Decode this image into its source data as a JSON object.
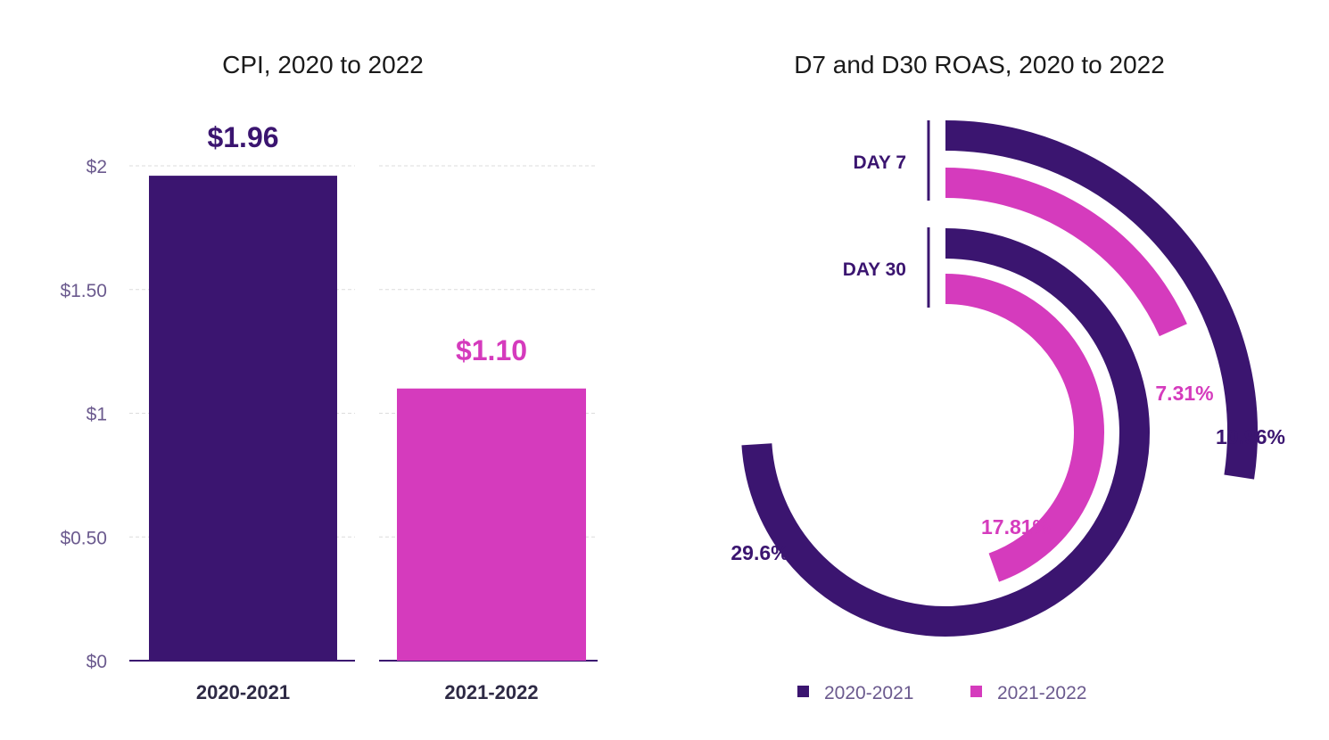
{
  "colors": {
    "series_2020": "#3b1570",
    "series_2021": "#d53bbd",
    "grid": "#dcdcdc",
    "axis": "#3b1570"
  },
  "chart_data": [
    {
      "type": "bar",
      "title": "CPI, 2020 to 2022",
      "categories": [
        "2020-2021",
        "2021-2022"
      ],
      "values": [
        1.96,
        1.1
      ],
      "value_labels": [
        "$1.96",
        "$1.10"
      ],
      "ylim": [
        0,
        2
      ],
      "yticks": [
        0,
        0.5,
        1,
        1.5,
        2
      ],
      "ytick_labels": [
        "$0",
        "$0.50",
        "$1",
        "$1.50",
        "$2"
      ],
      "grid": true,
      "legend": "none"
    },
    {
      "type": "radial-bar",
      "title": "D7 and D30 ROAS, 2020 to 2022",
      "groups": [
        "DAY 7",
        "DAY 30"
      ],
      "series": [
        {
          "name": "2020-2021",
          "values": [
            10.96,
            29.6
          ],
          "labels": [
            "10.96%",
            "29.6%"
          ]
        },
        {
          "name": "2021-2022",
          "values": [
            7.31,
            17.81
          ],
          "labels": [
            "7.31%",
            "17.81%"
          ]
        }
      ],
      "max_value": 40,
      "legend": "bottom"
    }
  ]
}
